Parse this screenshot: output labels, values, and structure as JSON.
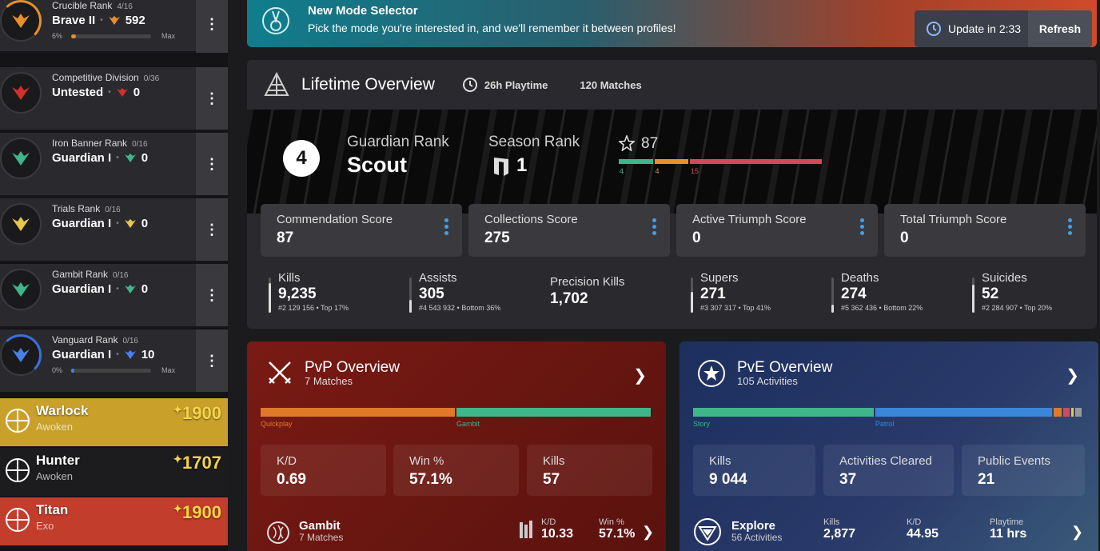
{
  "ranks": [
    {
      "title": "Crucible Rank",
      "progress": "4/16",
      "name": "Brave II",
      "value": "592",
      "pct": "6%",
      "max": "Max",
      "fill": 0.06,
      "color": "#e8902a",
      "ring": "#e8902a"
    },
    {
      "title": "Competitive Division",
      "progress": "0/36",
      "name": "Untested",
      "value": "0",
      "color": "#d2302e"
    },
    {
      "title": "Iron Banner Rank",
      "progress": "0/16",
      "name": "Guardian I",
      "value": "0",
      "color": "#3fb58a"
    },
    {
      "title": "Trials Rank",
      "progress": "0/16",
      "name": "Guardian I",
      "value": "0",
      "color": "#e8c64a"
    },
    {
      "title": "Gambit Rank",
      "progress": "0/16",
      "name": "Guardian I",
      "value": "0",
      "color": "#3fb58a"
    },
    {
      "title": "Vanguard Rank",
      "progress": "0/16",
      "name": "Guardian I",
      "value": "10",
      "pct": "0%",
      "max": "Max",
      "fill": 0.0,
      "color": "#4a7fe8",
      "ring": "#3a6fe0"
    }
  ],
  "characters": [
    {
      "name": "Warlock",
      "race": "Awoken",
      "light": "1900",
      "bg": "#c9a12a"
    },
    {
      "name": "Hunter",
      "race": "Awoken",
      "light": "1707",
      "bg": "#1c1c1e"
    },
    {
      "name": "Titan",
      "race": "Exo",
      "light": "1900",
      "bg": "#c23d2c"
    }
  ],
  "banner": {
    "title": "New Mode Selector",
    "subtitle": "Pick the mode you're interested in, and we'll remember it between profiles!",
    "update": "Update in 2:33",
    "refresh": "Refresh"
  },
  "lifetime": {
    "title": "Lifetime Overview",
    "playtime": "26h Playtime",
    "matches": "120 Matches"
  },
  "guardian": {
    "number": "4",
    "label": "Guardian Rank",
    "value": "Scout",
    "season_label": "Season Rank",
    "season_value": "1",
    "stars": "87",
    "bar": [
      {
        "label": "4",
        "value": 4,
        "color": "#3fb58a"
      },
      {
        "label": "4",
        "value": 4,
        "color": "#e8902a"
      },
      {
        "label": "15",
        "value": 15,
        "color": "#d04a5a"
      }
    ]
  },
  "scores": [
    {
      "label": "Commendation Score",
      "value": "87"
    },
    {
      "label": "Collections Score",
      "value": "275"
    },
    {
      "label": "Active Triumph Score",
      "value": "0"
    },
    {
      "label": "Total Triumph Score",
      "value": "0"
    }
  ],
  "stats": [
    {
      "label": "Kills",
      "value": "9,235",
      "sub": "#2 129 156 • Top 17%",
      "level": 0.83
    },
    {
      "label": "Assists",
      "value": "305",
      "sub": "#4 543 932 • Bottom 36%",
      "level": 0.36
    },
    {
      "label": "Precision Kills",
      "value": "1,702",
      "sub": ""
    },
    {
      "label": "Supers",
      "value": "271",
      "sub": "#3 307 317 • Top 41%",
      "level": 0.59
    },
    {
      "label": "Deaths",
      "value": "274",
      "sub": "#5 362 436 • Bottom 22%",
      "level": 0.22
    },
    {
      "label": "Suicides",
      "value": "52",
      "sub": "#2 284 907 • Top 20%",
      "level": 0.8
    }
  ],
  "pvp": {
    "title": "PvP Overview",
    "subtitle": "7 Matches",
    "segments": [
      {
        "label": "Quickplay",
        "share": 0.5,
        "color": "#e07a2a"
      },
      {
        "label": "Gambit",
        "share": 0.5,
        "color": "#3fb58a"
      }
    ],
    "boxes": [
      {
        "label": "K/D",
        "value": "0.69"
      },
      {
        "label": "Win %",
        "value": "57.1%"
      },
      {
        "label": "Kills",
        "value": "57"
      }
    ],
    "row": {
      "name": "Gambit",
      "sub": "7 Matches",
      "k1": "K/D",
      "v1": "10.33",
      "k2": "Win %",
      "v2": "57.1%"
    }
  },
  "pve": {
    "title": "PvE Overview",
    "subtitle": "105 Activities",
    "segments": [
      {
        "label": "Story",
        "share": 0.465,
        "color": "#3fb58a"
      },
      {
        "label": "Patrol",
        "share": 0.455,
        "color": "#3a86d8"
      },
      {
        "label": "",
        "share": 0.025,
        "color": "#e07a2a"
      },
      {
        "label": "",
        "share": 0.02,
        "color": "#d04a5a"
      },
      {
        "label": "",
        "share": 0.01,
        "color": "#e8c64a"
      },
      {
        "label": "",
        "share": 0.02,
        "color": "#999"
      }
    ],
    "boxes": [
      {
        "label": "Kills",
        "value": "9 044"
      },
      {
        "label": "Activities Cleared",
        "value": "37"
      },
      {
        "label": "Public Events",
        "value": "21"
      }
    ],
    "row": {
      "name": "Explore",
      "sub": "56 Activities",
      "k1": "Kills",
      "v1": "2,877",
      "k2": "K/D",
      "v2": "44.95",
      "k3": "Playtime",
      "v3": "11 hrs"
    }
  }
}
